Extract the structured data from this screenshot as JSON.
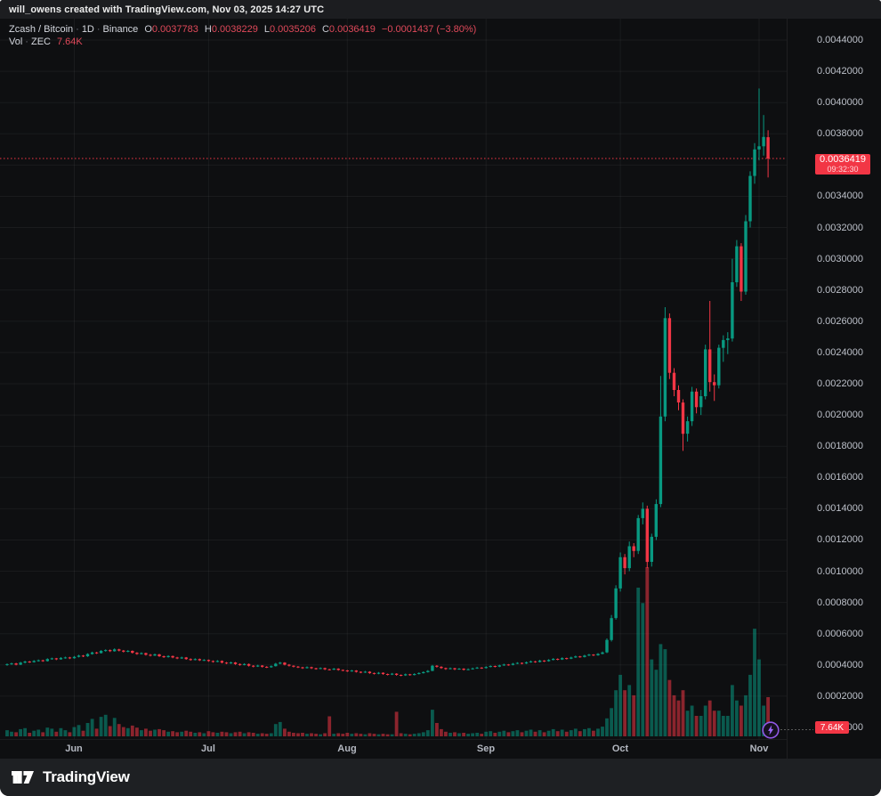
{
  "header": {
    "attribution": "will_owens created with TradingView.com, Nov 03, 2025 14:27 UTC"
  },
  "legend": {
    "row1": {
      "symbol": "Zcash / Bitcoin",
      "sep": "·",
      "interval": "1D",
      "exchange": "Binance",
      "ohlc": [
        {
          "label": "O",
          "value": "0.0037783"
        },
        {
          "label": "H",
          "value": "0.0038229"
        },
        {
          "label": "L",
          "value": "0.0035206"
        },
        {
          "label": "C",
          "value": "0.0036419"
        }
      ],
      "change": "−0.0001437 (−3.80%)"
    },
    "row2": {
      "label": "Vol",
      "sep": "·",
      "unit": "ZEC",
      "value": "7.64K"
    }
  },
  "price_axis": {
    "ticks": [
      0.0044,
      0.0042,
      0.004,
      0.0038,
      0.0036,
      0.0034,
      0.0032,
      0.003,
      0.0028,
      0.0026,
      0.0024,
      0.0022,
      0.002,
      0.0018,
      0.0016,
      0.0014,
      0.0012,
      0.001,
      0.0008,
      0.0006,
      0.0004,
      0.0002,
      0.0
    ],
    "hidden_tick": 0.0036,
    "tick_decimals": 7,
    "last_price": {
      "value": "0.0036419",
      "countdown": "09:32:30"
    },
    "volume_label": "7.64K"
  },
  "time_axis": {
    "months": [
      {
        "label": "Jun",
        "day": 15
      },
      {
        "label": "Jul",
        "day": 45
      },
      {
        "label": "Aug",
        "day": 76
      },
      {
        "label": "Sep",
        "day": 107
      },
      {
        "label": "Oct",
        "day": 137
      },
      {
        "label": "Nov",
        "day": 168
      }
    ]
  },
  "footer": {
    "brand": "TradingView"
  },
  "colors": {
    "up": "#089981",
    "down": "#f23645",
    "last_price_line": "#f23645",
    "badge_red": "#f23645",
    "purple": "#9157e5",
    "purple_bolt": "#a06aff",
    "grid": "rgba(255,255,255,0.05)",
    "axis_text": "#bcc0c9"
  },
  "chart_data": {
    "type": "candlestick",
    "title": "Zcash / Bitcoin · 1D · Binance",
    "symbol": "ZEC/BTC",
    "exchange": "Binance",
    "interval": "1D",
    "start_date": "2025-05-17",
    "end_date": "2025-11-03",
    "price_scale": 1e-07,
    "ohlcv_fields": [
      "open",
      "high",
      "low",
      "close",
      "volume_K_ZEC"
    ],
    "ylim": [
      0,
      0.0044
    ],
    "volume_max_K": 33,
    "grid": true,
    "last_price": 0.0036419,
    "last_candle": {
      "open": 0.0037783,
      "high": 0.0038229,
      "low": 0.0035206,
      "close": 0.0036419,
      "change": -0.0001437,
      "change_pct": -3.8,
      "volume": "7.64K"
    },
    "countdown": "09:32:30",
    "candles": [
      [
        4000,
        4100,
        3950,
        4050,
        1.2
      ],
      [
        4050,
        4150,
        4000,
        4100,
        0.9
      ],
      [
        4100,
        4140,
        3970,
        4020,
        0.8
      ],
      [
        4020,
        4200,
        3990,
        4150,
        1.4
      ],
      [
        4150,
        4270,
        4100,
        4220,
        1.6
      ],
      [
        4220,
        4260,
        4130,
        4180,
        0.7
      ],
      [
        4180,
        4310,
        4150,
        4260,
        1.1
      ],
      [
        4260,
        4350,
        4210,
        4300,
        1.3
      ],
      [
        4300,
        4340,
        4200,
        4250,
        0.8
      ],
      [
        4250,
        4430,
        4220,
        4380,
        1.7
      ],
      [
        4380,
        4470,
        4330,
        4420,
        1.5
      ],
      [
        4420,
        4450,
        4310,
        4360,
        0.9
      ],
      [
        4360,
        4500,
        4330,
        4450,
        1.6
      ],
      [
        4450,
        4530,
        4400,
        4480,
        1.2
      ],
      [
        4480,
        4520,
        4380,
        4430,
        0.8
      ],
      [
        4430,
        4570,
        4400,
        4520,
        1.8
      ],
      [
        4520,
        4650,
        4480,
        4600,
        2.2
      ],
      [
        4600,
        4640,
        4500,
        4550,
        1.1
      ],
      [
        4550,
        4750,
        4520,
        4700,
        2.6
      ],
      [
        4700,
        4850,
        4660,
        4800,
        3.4
      ],
      [
        4800,
        4840,
        4700,
        4760,
        1.5
      ],
      [
        4760,
        4950,
        4730,
        4900,
        3.8
      ],
      [
        4900,
        5000,
        4850,
        4950,
        4.2
      ],
      [
        4950,
        4990,
        4830,
        4880,
        2.0
      ],
      [
        4880,
        5060,
        4850,
        5000,
        3.6
      ],
      [
        5000,
        5040,
        4870,
        4920,
        2.4
      ],
      [
        4920,
        4960,
        4800,
        4850,
        1.8
      ],
      [
        4850,
        4950,
        4810,
        4900,
        1.6
      ],
      [
        4900,
        4930,
        4730,
        4780,
        2.1
      ],
      [
        4780,
        4820,
        4650,
        4700,
        1.7
      ],
      [
        4700,
        4810,
        4670,
        4760,
        1.2
      ],
      [
        4760,
        4790,
        4600,
        4650,
        1.5
      ],
      [
        4650,
        4700,
        4550,
        4600,
        1.1
      ],
      [
        4600,
        4730,
        4570,
        4680,
        1.3
      ],
      [
        4680,
        4710,
        4510,
        4560,
        1.4
      ],
      [
        4560,
        4600,
        4450,
        4500,
        1.2
      ],
      [
        4500,
        4620,
        4470,
        4570,
        0.9
      ],
      [
        4570,
        4600,
        4430,
        4480,
        1.0
      ],
      [
        4480,
        4520,
        4370,
        4420,
        0.8
      ],
      [
        4420,
        4530,
        4390,
        4480,
        0.9
      ],
      [
        4480,
        4510,
        4330,
        4380,
        1.1
      ],
      [
        4380,
        4420,
        4270,
        4320,
        0.9
      ],
      [
        4320,
        4430,
        4290,
        4380,
        0.7
      ],
      [
        4380,
        4410,
        4250,
        4300,
        0.8
      ],
      [
        4300,
        4370,
        4260,
        4320,
        0.6
      ],
      [
        4320,
        4350,
        4200,
        4250,
        1.0
      ],
      [
        4250,
        4290,
        4150,
        4200,
        0.8
      ],
      [
        4200,
        4310,
        4170,
        4260,
        0.7
      ],
      [
        4260,
        4290,
        4100,
        4150,
        0.9
      ],
      [
        4150,
        4190,
        4050,
        4100,
        0.8
      ],
      [
        4100,
        4210,
        4070,
        4160,
        0.6
      ],
      [
        4160,
        4190,
        4010,
        4060,
        0.8
      ],
      [
        4060,
        4100,
        3950,
        4000,
        0.9
      ],
      [
        4000,
        4110,
        3970,
        4060,
        0.6
      ],
      [
        4060,
        4090,
        3900,
        3950,
        0.8
      ],
      [
        3950,
        3990,
        3850,
        3900,
        0.7
      ],
      [
        3900,
        4010,
        3870,
        3960,
        0.5
      ],
      [
        3960,
        3990,
        3830,
        3880,
        0.6
      ],
      [
        3880,
        3920,
        3800,
        3850,
        0.5
      ],
      [
        3850,
        3970,
        3820,
        3920,
        0.6
      ],
      [
        3920,
        4130,
        3900,
        4080,
        2.4
      ],
      [
        4080,
        4200,
        4040,
        4150,
        2.8
      ],
      [
        4150,
        4180,
        3970,
        4020,
        1.5
      ],
      [
        4020,
        4060,
        3900,
        3950,
        0.9
      ],
      [
        3950,
        3980,
        3840,
        3890,
        0.7
      ],
      [
        3890,
        3930,
        3800,
        3850,
        0.6
      ],
      [
        3850,
        3880,
        3750,
        3800,
        0.7
      ],
      [
        3800,
        3910,
        3770,
        3860,
        0.5
      ],
      [
        3860,
        3890,
        3740,
        3790,
        0.6
      ],
      [
        3790,
        3820,
        3700,
        3750,
        0.5
      ],
      [
        3750,
        3850,
        3720,
        3800,
        0.4
      ],
      [
        3800,
        3830,
        3670,
        3720,
        0.6
      ],
      [
        3720,
        3750,
        3650,
        3700,
        3.9
      ],
      [
        3700,
        3810,
        3670,
        3760,
        0.5
      ],
      [
        3760,
        3790,
        3630,
        3680,
        0.6
      ],
      [
        3680,
        3710,
        3600,
        3650,
        0.5
      ],
      [
        3650,
        3680,
        3550,
        3600,
        0.7
      ],
      [
        3600,
        3690,
        3570,
        3640,
        0.5
      ],
      [
        3640,
        3670,
        3510,
        3560,
        0.6
      ],
      [
        3560,
        3590,
        3470,
        3520,
        0.5
      ],
      [
        3520,
        3620,
        3490,
        3570,
        0.4
      ],
      [
        3570,
        3600,
        3430,
        3480,
        0.6
      ],
      [
        3480,
        3510,
        3390,
        3440,
        0.5
      ],
      [
        3440,
        3550,
        3410,
        3500,
        0.4
      ],
      [
        3500,
        3530,
        3370,
        3420,
        0.5
      ],
      [
        3420,
        3450,
        3330,
        3380,
        0.4
      ],
      [
        3380,
        3490,
        3350,
        3440,
        0.4
      ],
      [
        3440,
        3470,
        3310,
        3360,
        4.8
      ],
      [
        3360,
        3390,
        3280,
        3330,
        0.6
      ],
      [
        3330,
        3450,
        3300,
        3400,
        0.5
      ],
      [
        3400,
        3430,
        3310,
        3360,
        0.4
      ],
      [
        3360,
        3470,
        3330,
        3420,
        0.5
      ],
      [
        3420,
        3530,
        3390,
        3480,
        0.6
      ],
      [
        3480,
        3590,
        3450,
        3540,
        0.8
      ],
      [
        3540,
        3670,
        3510,
        3620,
        1.2
      ],
      [
        3620,
        4000,
        3600,
        3950,
        5.2
      ],
      [
        3950,
        3990,
        3830,
        3880,
        2.6
      ],
      [
        3880,
        3920,
        3750,
        3800,
        1.4
      ],
      [
        3800,
        3830,
        3690,
        3740,
        0.9
      ],
      [
        3740,
        3840,
        3710,
        3790,
        0.7
      ],
      [
        3790,
        3820,
        3670,
        3720,
        0.8
      ],
      [
        3720,
        3810,
        3690,
        3760,
        0.6
      ],
      [
        3760,
        3790,
        3640,
        3690,
        0.7
      ],
      [
        3690,
        3780,
        3660,
        3730,
        0.5
      ],
      [
        3730,
        3830,
        3700,
        3780,
        0.6
      ],
      [
        3780,
        3880,
        3750,
        3830,
        0.7
      ],
      [
        3830,
        3860,
        3750,
        3800,
        0.5
      ],
      [
        3800,
        3920,
        3770,
        3870,
        0.9
      ],
      [
        3870,
        3980,
        3840,
        3930,
        1.0
      ],
      [
        3930,
        3960,
        3840,
        3890,
        0.7
      ],
      [
        3890,
        4020,
        3860,
        3970,
        0.9
      ],
      [
        3970,
        4080,
        3940,
        4030,
        1.1
      ],
      [
        4030,
        4060,
        3950,
        4000,
        0.8
      ],
      [
        4000,
        4130,
        3970,
        4080,
        1.0
      ],
      [
        4080,
        4180,
        4050,
        4130,
        1.2
      ],
      [
        4130,
        4160,
        4040,
        4090,
        0.8
      ],
      [
        4090,
        4220,
        4060,
        4170,
        1.1
      ],
      [
        4170,
        4280,
        4140,
        4230,
        1.3
      ],
      [
        4230,
        4260,
        4140,
        4190,
        0.9
      ],
      [
        4190,
        4330,
        4160,
        4280,
        1.2
      ],
      [
        4280,
        4310,
        4190,
        4240,
        0.8
      ],
      [
        4240,
        4370,
        4210,
        4320,
        1.1
      ],
      [
        4320,
        4440,
        4290,
        4390,
        1.4
      ],
      [
        4390,
        4420,
        4300,
        4350,
        1.0
      ],
      [
        4350,
        4490,
        4320,
        4440,
        1.3
      ],
      [
        4440,
        4470,
        4350,
        4400,
        0.9
      ],
      [
        4400,
        4530,
        4370,
        4480,
        1.2
      ],
      [
        4480,
        4600,
        4450,
        4550,
        1.5
      ],
      [
        4550,
        4580,
        4460,
        4510,
        1.0
      ],
      [
        4510,
        4650,
        4480,
        4600,
        1.4
      ],
      [
        4600,
        4710,
        4570,
        4660,
        1.6
      ],
      [
        4660,
        4690,
        4570,
        4620,
        1.1
      ],
      [
        4620,
        4760,
        4590,
        4710,
        1.5
      ],
      [
        4710,
        4860,
        4680,
        4800,
        1.9
      ],
      [
        4800,
        5700,
        4760,
        5600,
        3.5
      ],
      [
        5600,
        7200,
        5500,
        7000,
        5.5
      ],
      [
        7000,
        9100,
        6900,
        8900,
        9.0
      ],
      [
        8900,
        11200,
        8700,
        10900,
        12.0
      ],
      [
        10900,
        11100,
        9800,
        10200,
        9.0
      ],
      [
        10200,
        11900,
        10000,
        11600,
        10.0
      ],
      [
        11600,
        11800,
        10900,
        11300,
        8.0
      ],
      [
        11300,
        13600,
        11100,
        13400,
        29.0
      ],
      [
        13400,
        14400,
        13000,
        14000,
        26.0
      ],
      [
        14000,
        14200,
        10200,
        10600,
        33.0
      ],
      [
        10600,
        12400,
        10300,
        12200,
        15.0
      ],
      [
        12200,
        14600,
        12000,
        14300,
        13.0
      ],
      [
        14300,
        22500,
        14100,
        19900,
        18.0
      ],
      [
        19900,
        26900,
        19600,
        26200,
        17.0
      ],
      [
        26200,
        26500,
        22300,
        22700,
        11.0
      ],
      [
        22700,
        23000,
        21200,
        21600,
        8.0
      ],
      [
        21600,
        21900,
        20300,
        20800,
        7.0
      ],
      [
        20800,
        21000,
        17700,
        18800,
        9.0
      ],
      [
        18800,
        19900,
        18300,
        19600,
        5.0
      ],
      [
        19600,
        21800,
        19300,
        21500,
        6.0
      ],
      [
        21500,
        21700,
        20100,
        20500,
        4.0
      ],
      [
        20500,
        21600,
        20000,
        21200,
        4.0
      ],
      [
        21200,
        24500,
        21000,
        24200,
        6.0
      ],
      [
        24200,
        27300,
        21500,
        22100,
        7.0
      ],
      [
        22100,
        22600,
        20900,
        21900,
        5.0
      ],
      [
        21900,
        24500,
        21700,
        24300,
        5.0
      ],
      [
        24300,
        25100,
        23400,
        24800,
        4.0
      ],
      [
        24800,
        25300,
        23900,
        24900,
        4.0
      ],
      [
        24900,
        30000,
        24700,
        28500,
        10.0
      ],
      [
        28500,
        31200,
        28200,
        30800,
        7.0
      ],
      [
        30800,
        31000,
        27300,
        27900,
        6.0
      ],
      [
        27900,
        32800,
        27700,
        32400,
        8.0
      ],
      [
        32400,
        35600,
        32000,
        35300,
        12.0
      ],
      [
        35300,
        37400,
        34800,
        37000,
        21.0
      ],
      [
        37000,
        40900,
        36300,
        37200,
        15.0
      ],
      [
        37200,
        39200,
        36600,
        37800,
        6.0
      ],
      [
        37783,
        38229,
        35206,
        36419,
        7.64
      ]
    ]
  }
}
